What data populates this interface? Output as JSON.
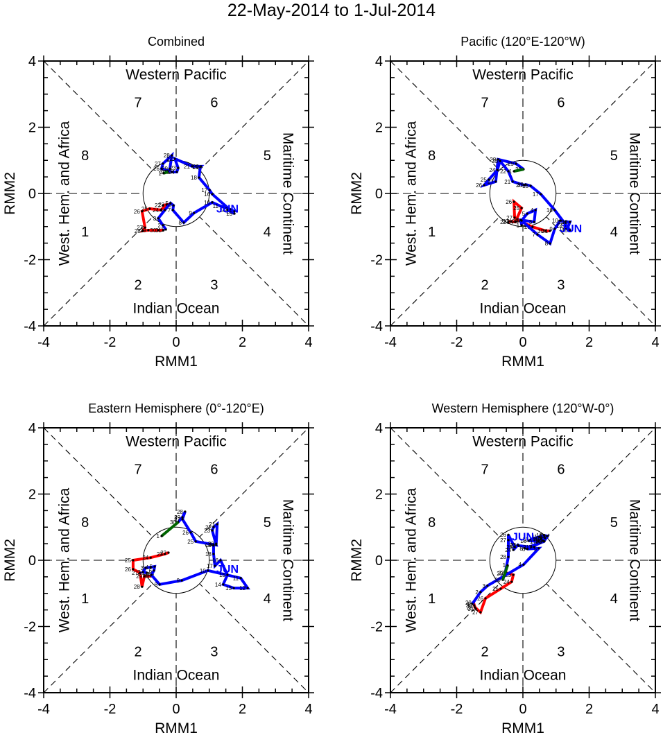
{
  "chart_data": {
    "type": "line",
    "title": "22-May-2014 to 1-Jul-2014",
    "xlabel": "RMM1",
    "ylabel": "RMM2",
    "xlim": [
      -4,
      4
    ],
    "ylim": [
      -4,
      4
    ],
    "xticks": [
      "-4",
      "-2",
      "0",
      "2",
      "4"
    ],
    "yticks": [
      "-4",
      "-2",
      "0",
      "2",
      "4"
    ],
    "grid": false,
    "legend": "none",
    "region_labels": {
      "top": "Western Pacific",
      "bottom": "Indian Ocean",
      "left": "West. Hem. and Africa",
      "right": "Maritime Continent"
    },
    "phase_labels": [
      {
        "label": "1",
        "x": -2.75,
        "y": -1.15
      },
      {
        "label": "2",
        "x": -1.15,
        "y": -2.75
      },
      {
        "label": "3",
        "x": 1.15,
        "y": -2.75
      },
      {
        "label": "4",
        "x": 2.75,
        "y": -1.15
      },
      {
        "label": "5",
        "x": 2.75,
        "y": 1.15
      },
      {
        "label": "6",
        "x": 1.15,
        "y": 2.75
      },
      {
        "label": "7",
        "x": -1.15,
        "y": 2.75
      },
      {
        "label": "8",
        "x": -2.75,
        "y": 1.15
      }
    ],
    "month_colors": {
      "May": "#ff0000",
      "Jun": "#0000ff",
      "Jul": "#006400"
    },
    "month_label": "JUN",
    "panels": [
      {
        "name": "combined",
        "title": "Combined",
        "jun_label_at": [
          1.55,
          -0.45
        ],
        "series": [
          {
            "name": "May",
            "days": [
              22,
              23,
              24,
              25,
              26,
              27,
              28,
              29,
              30,
              31
            ],
            "x": [
              -0.4,
              -0.29,
              -0.46,
              -0.8,
              -1.03,
              -0.94,
              -1.01,
              -0.84,
              -0.54,
              -0.38
            ],
            "y": [
              -0.36,
              -0.34,
              -0.5,
              -0.46,
              -0.54,
              -1.03,
              -1.13,
              -1.11,
              -1.11,
              -1.11
            ]
          },
          {
            "name": "Jun",
            "days": [
              1,
              2,
              3,
              4,
              5,
              6,
              7,
              8,
              9,
              10,
              11,
              12,
              13,
              14,
              15,
              16,
              17,
              18,
              19,
              20,
              21,
              22,
              23,
              24,
              25,
              26,
              27,
              28,
              29,
              30
            ],
            "x": [
              -0.31,
              -0.4,
              -0.54,
              -0.34,
              -0.17,
              -0.08,
              -0.1,
              0.23,
              0.54,
              1.09,
              1.34,
              1.63,
              1.76,
              1.55,
              1.76,
              1.09,
              1.01,
              0.69,
              0.73,
              0.75,
              0.48,
              -0.04,
              0.06,
              0.02,
              -0.13,
              -0.44,
              -0.4,
              -0.13,
              -0.19,
              -0.25
            ],
            "y": [
              -1.09,
              -0.96,
              -0.75,
              -0.5,
              -0.29,
              -0.36,
              -0.5,
              -0.88,
              -0.59,
              -0.27,
              -0.38,
              -0.48,
              -0.54,
              -0.5,
              -0.61,
              -0.02,
              0.1,
              0.48,
              0.8,
              0.82,
              0.82,
              1.05,
              0.77,
              0.65,
              0.65,
              0.75,
              0.9,
              1.15,
              0.75,
              0.65
            ]
          },
          {
            "name": "Jul",
            "days": [
              1
            ],
            "x": [
              -0.38
            ],
            "y": [
              0.61
            ]
          }
        ]
      },
      {
        "name": "pacific",
        "title": "Pacific (120°E-120°W)",
        "jun_label_at": [
          1.45,
          -1.05
        ],
        "series": [
          {
            "name": "May",
            "days": [
              22,
              23,
              24,
              25,
              26,
              27,
              28,
              29,
              30,
              31
            ],
            "x": [
              -0.44,
              -0.36,
              -0.23,
              -0.04,
              -0.27,
              -0.25,
              -0.08,
              0.29,
              0.69,
              0.82
            ],
            "y": [
              -0.86,
              -0.84,
              -0.86,
              -0.44,
              -0.25,
              -0.73,
              -0.84,
              -1.01,
              -1.13,
              -1.13
            ]
          },
          {
            "name": "Jun",
            "days": [
              1,
              2,
              3,
              4,
              5,
              6,
              7,
              8,
              9,
              10,
              11,
              12,
              13,
              14,
              15,
              16,
              17,
              18,
              19,
              20,
              21,
              22,
              23,
              24,
              25,
              26,
              27,
              28,
              29,
              30
            ],
            "x": [
              -0.04,
              -0.06,
              0.34,
              0.38,
              0.13,
              -0.04,
              0.44,
              0.82,
              0.96,
              1.13,
              1.28,
              1.42,
              1.34,
              1.26,
              1.42,
              0.96,
              0.54,
              0.23,
              0.08,
              0.04,
              -0.31,
              -0.44,
              -0.69,
              -0.77,
              -1.03,
              -1.17,
              -0.82,
              -0.75,
              -0.21,
              0.02
            ],
            "y": [
              -0.96,
              -0.8,
              -0.86,
              -0.5,
              -0.61,
              -0.82,
              -1.24,
              -1.51,
              -1.07,
              -0.82,
              -0.86,
              -0.86,
              -1.07,
              -0.98,
              -1.11,
              -0.5,
              -0.02,
              0.23,
              0.27,
              0.25,
              0.36,
              0.67,
              0.98,
              0.71,
              0.42,
              0.25,
              0.36,
              1.03,
              0.9,
              0.73
            ]
          },
          {
            "name": "Jul",
            "days": [
              1
            ],
            "x": [
              -0.27
            ],
            "y": [
              0.67
            ]
          }
        ]
      },
      {
        "name": "eastern-hemisphere",
        "title": "Eastern Hemisphere (0°-120°E)",
        "jun_label_at": [
          1.55,
          -0.25
        ],
        "series": [
          {
            "name": "May",
            "days": [
              22,
              23,
              24,
              25,
              26,
              27,
              28,
              29,
              30,
              31
            ],
            "x": [
              -0.23,
              -0.34,
              -0.77,
              -1.3,
              -1.3,
              -1.09,
              -1.03,
              -0.96,
              -0.75,
              -0.71
            ],
            "y": [
              0.23,
              0.19,
              0.08,
              0.0,
              -0.27,
              -0.38,
              -0.8,
              -0.48,
              -0.48,
              -0.42
            ]
          },
          {
            "name": "Jun",
            "days": [
              1,
              2,
              3,
              4,
              5,
              6,
              7,
              8,
              9,
              10,
              11,
              12,
              13,
              14,
              15,
              16,
              17,
              18,
              19,
              20,
              21,
              22,
              23,
              24,
              25,
              26,
              27,
              28,
              29,
              30
            ],
            "x": [
              -0.88,
              -1.01,
              -0.92,
              -0.77,
              -0.65,
              -0.67,
              -0.75,
              -0.5,
              0.17,
              0.96,
              1.95,
              2.16,
              1.74,
              1.42,
              1.55,
              1.34,
              1.17,
              1.13,
              1.13,
              1.21,
              1.24,
              1.13,
              1.09,
              1.21,
              0.59,
              0.44,
              0.19,
              0.27,
              0.19,
              0.06
            ],
            "y": [
              -0.38,
              -0.36,
              -0.23,
              -0.21,
              -0.19,
              -0.31,
              -0.44,
              -0.73,
              -0.61,
              -0.31,
              -0.54,
              -0.84,
              -0.84,
              -0.73,
              -0.44,
              0.0,
              -0.17,
              0.19,
              0.46,
              0.5,
              1.09,
              1.0,
              0.9,
              0.46,
              0.57,
              0.84,
              1.24,
              1.47,
              1.3,
              1.15
            ]
          },
          {
            "name": "Jul",
            "days": [
              1
            ],
            "x": [
              -0.44
            ],
            "y": [
              0.73
            ]
          }
        ]
      },
      {
        "name": "western-hemisphere",
        "title": "Western Hemisphere (120°W-0°)",
        "jun_label_at": [
          0.0,
          0.72
        ],
        "series": [
          {
            "name": "May",
            "days": [
              22,
              23,
              24,
              25,
              26,
              27,
              28,
              29,
              30,
              31
            ],
            "x": [
              -0.5,
              -0.29,
              -0.34,
              -0.67,
              -1.13,
              -1.28,
              -1.45,
              -1.49,
              -1.47,
              -1.42
            ],
            "y": [
              -0.38,
              -0.44,
              -0.65,
              -0.86,
              -1.15,
              -1.57,
              -1.42,
              -1.28,
              -1.36,
              -1.47
            ]
          },
          {
            "name": "Jun",
            "days": [
              1,
              2,
              3,
              4,
              5,
              6,
              7,
              8,
              9,
              10,
              11,
              12,
              13,
              14,
              15,
              16,
              17,
              18,
              19,
              20,
              21,
              22,
              23,
              24,
              25,
              26,
              27,
              28,
              29,
              30
            ],
            "x": [
              -1.53,
              -1.28,
              -1.07,
              0.02,
              0.48,
              0.13,
              0.34,
              0.06,
              0.65,
              0.23,
              0.5,
              0.65,
              0.73,
              0.67,
              0.54,
              0.17,
              0.46,
              0.61,
              0.75,
              0.63,
              0.25,
              -0.13,
              -0.15,
              -0.29,
              -0.25,
              -0.44,
              -0.44,
              -0.44,
              -0.54,
              -0.61
            ],
            "y": [
              -1.32,
              -0.96,
              -0.77,
              -0.13,
              0.36,
              0.34,
              0.4,
              0.36,
              0.57,
              0.63,
              0.71,
              0.75,
              0.73,
              0.67,
              0.65,
              0.59,
              0.57,
              0.59,
              0.73,
              0.57,
              0.4,
              0.44,
              0.46,
              0.31,
              0.4,
              0.77,
              0.61,
              0.1,
              -0.4,
              -0.59
            ]
          },
          {
            "name": "Jul",
            "days": [
              1
            ],
            "x": [
              -0.46
            ],
            "y": [
              -0.15
            ]
          }
        ]
      }
    ]
  }
}
